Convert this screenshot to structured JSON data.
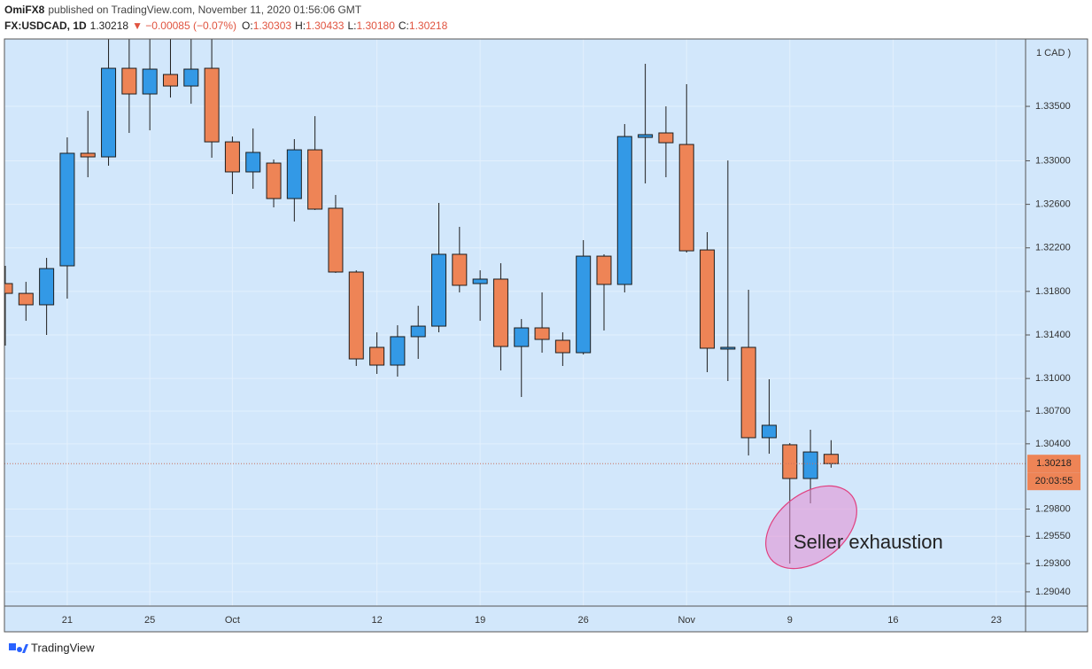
{
  "header": {
    "author": "OmiFX8",
    "published": "published on TradingView.com, November 11, 2020 01:56:06 GMT",
    "symbol": "FX:USDCAD, 1D",
    "last": "1.30218",
    "change": "▼ −0.00085 (−0.07%)",
    "ohlc": [
      {
        "label": "O:",
        "value": "1.30303"
      },
      {
        "label": "H:",
        "value": "1.30433"
      },
      {
        "label": "L:",
        "value": "1.30180"
      },
      {
        "label": "C:",
        "value": "1.30218"
      }
    ]
  },
  "footer": {
    "brand": "TradingView"
  },
  "chart_data": {
    "type": "candlestick",
    "axis_unit": "1 CAD )",
    "categories": [
      null,
      null,
      null,
      "21",
      null,
      null,
      null,
      "25",
      null,
      null,
      null,
      "Oct",
      null,
      null,
      null,
      null,
      null,
      null,
      "12",
      null,
      null,
      null,
      null,
      "19",
      null,
      null,
      null,
      null,
      "26",
      null,
      null,
      null,
      null,
      "Nov",
      null,
      null,
      null,
      null,
      "9",
      null,
      null,
      null,
      null,
      "16",
      null,
      null,
      null,
      null,
      "23",
      null
    ],
    "open": [
      1.31872,
      1.31782,
      1.31677,
      1.32035,
      1.33069,
      1.33036,
      1.3385,
      1.33614,
      1.33793,
      1.33687,
      1.3385,
      1.33174,
      1.32898,
      1.32979,
      1.32653,
      1.33101,
      1.32564,
      1.31978,
      1.31286,
      1.31123,
      1.31384,
      1.31481,
      1.32141,
      1.31872,
      1.31913,
      1.31294,
      1.31465,
      1.31351,
      1.31237,
      1.32124,
      1.31864,
      1.33215,
      1.33256,
      1.3315,
      1.32181,
      1.3127,
      1.31286,
      1.30456,
      1.30391,
      1.30081,
      1.30303,
      null,
      null,
      null,
      null,
      null,
      null,
      null,
      null,
      null
    ],
    "high": [
      1.32035,
      1.31888,
      1.32108,
      1.33215,
      1.33459,
      1.342,
      1.3415,
      1.3415,
      1.3415,
      1.342,
      1.3415,
      1.33223,
      1.33297,
      1.33012,
      1.33199,
      1.3341,
      1.32686,
      1.31994,
      1.31424,
      1.31489,
      1.31668,
      1.32613,
      1.32393,
      1.31994,
      1.32059,
      1.31546,
      1.31791,
      1.31424,
      1.32271,
      1.32141,
      1.33337,
      1.33891,
      1.335,
      1.33704,
      1.32344,
      1.33003,
      1.31815,
      1.30993,
      1.30407,
      1.30529,
      1.30433,
      null,
      null,
      null,
      null,
      null,
      null,
      null,
      null,
      null
    ],
    "low": [
      1.31302,
      1.3153,
      1.314,
      1.31734,
      1.32849,
      1.32955,
      1.33256,
      1.3328,
      1.33581,
      1.33524,
      1.33028,
      1.32694,
      1.32743,
      1.32572,
      1.32442,
      1.32548,
      1.3197,
      1.31115,
      1.31042,
      1.31017,
      1.3118,
      1.31424,
      1.31791,
      1.3153,
      1.31074,
      1.3083,
      1.31237,
      1.31115,
      1.3122,
      1.31441,
      1.31791,
      1.32792,
      1.32849,
      1.32157,
      1.31058,
      1.30977,
      1.30293,
      1.30309,
      1.293,
      1.29853,
      1.3018,
      null,
      null,
      null,
      null,
      null,
      null,
      null,
      null,
      null
    ],
    "close": [
      1.31782,
      1.31677,
      1.3201,
      1.33069,
      1.33036,
      1.3385,
      1.33614,
      1.33842,
      1.33687,
      1.33842,
      1.33174,
      1.32898,
      1.33077,
      1.32653,
      1.33101,
      1.32556,
      1.31978,
      1.3118,
      1.31123,
      1.31384,
      1.31481,
      1.32141,
      1.31856,
      1.31913,
      1.31294,
      1.31465,
      1.31359,
      1.31237,
      1.32124,
      1.31864,
      1.33223,
      1.3324,
      1.33166,
      1.32173,
      1.31278,
      1.31286,
      1.30456,
      1.3057,
      1.30081,
      1.30325,
      1.30218,
      null,
      null,
      null,
      null,
      null,
      null,
      null,
      null,
      null
    ],
    "up_color": "#3399e6",
    "down_color": "#ee8456",
    "ylim": [
      1.28909,
      1.34119
    ],
    "yticks": [
      {
        "value": 1.2904,
        "label": "1.29040"
      },
      {
        "value": 1.293,
        "label": "1.29300"
      },
      {
        "value": 1.2955,
        "label": "1.29550"
      },
      {
        "value": 1.298,
        "label": "1.29800"
      },
      {
        "value": 1.304,
        "label": "1.30400"
      },
      {
        "value": 1.307,
        "label": "1.30700"
      },
      {
        "value": 1.31,
        "label": "1.31000"
      },
      {
        "value": 1.314,
        "label": "1.31400"
      },
      {
        "value": 1.318,
        "label": "1.31800"
      },
      {
        "value": 1.322,
        "label": "1.32200"
      },
      {
        "value": 1.326,
        "label": "1.32600"
      },
      {
        "value": 1.33,
        "label": "1.33000"
      },
      {
        "value": 1.335,
        "label": "1.33500"
      }
    ],
    "last_price": {
      "value": 1.30218,
      "label": "1.30218"
    },
    "countdown": "20:03:55",
    "annotation": "Seller exhaustion",
    "grid": true
  }
}
